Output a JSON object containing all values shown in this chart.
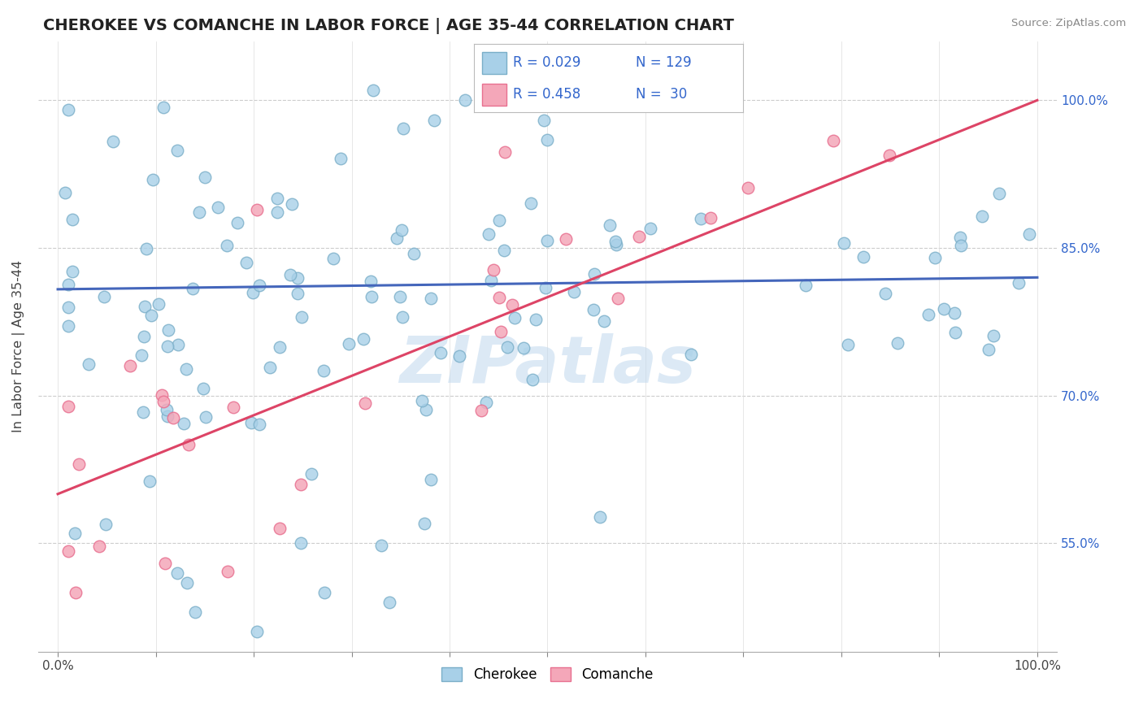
{
  "title": "CHEROKEE VS COMANCHE IN LABOR FORCE | AGE 35-44 CORRELATION CHART",
  "source": "Source: ZipAtlas.com",
  "ylabel": "In Labor Force | Age 35-44",
  "xlim": [
    -0.02,
    1.02
  ],
  "ylim": [
    0.44,
    1.06
  ],
  "cherokee_color": "#a8d0e8",
  "comanche_color": "#f4a7b9",
  "cherokee_edge": "#7aaec8",
  "comanche_edge": "#e87090",
  "cherokee_line_color": "#4466bb",
  "comanche_line_color": "#dd4466",
  "watermark": "ZIPatlas",
  "cherokee_R": 0.029,
  "cherokee_N": 129,
  "comanche_R": 0.458,
  "comanche_N": 30,
  "yticks": [
    0.55,
    0.7,
    0.85,
    1.0
  ],
  "ytick_labels": [
    "55.0%",
    "70.0%",
    "85.0%",
    "100.0%"
  ],
  "grid_xticks": [
    0.0,
    0.1,
    0.2,
    0.3,
    0.4,
    0.5,
    0.6,
    0.7,
    0.8,
    0.9,
    1.0
  ],
  "cherokee_line_x0": 0.0,
  "cherokee_line_x1": 1.0,
  "cherokee_line_y0": 0.808,
  "cherokee_line_y1": 0.82,
  "comanche_line_x0": 0.0,
  "comanche_line_x1": 1.0,
  "comanche_line_y0": 0.6,
  "comanche_line_y1": 1.0
}
